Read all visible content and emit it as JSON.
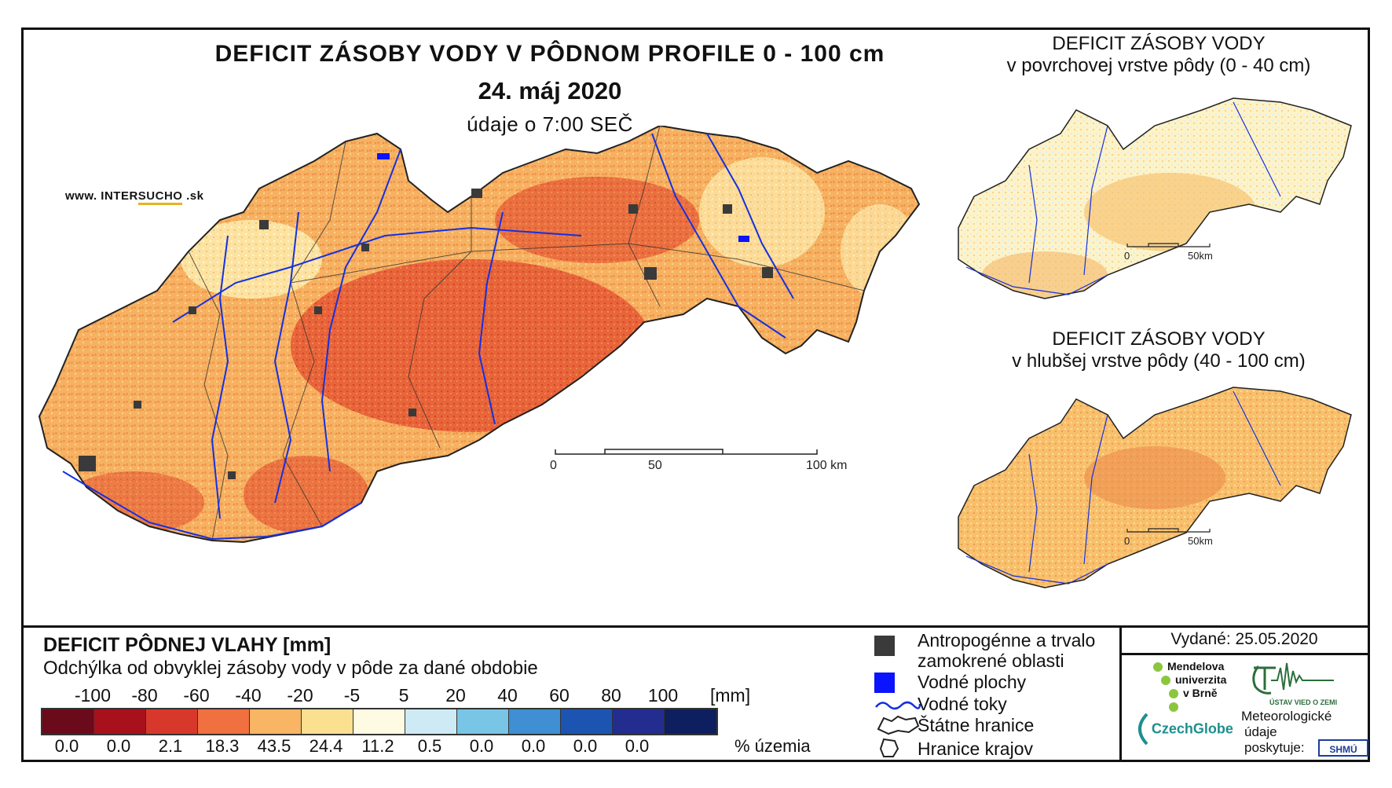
{
  "header": {
    "title": "DEFICIT ZÁSOBY VODY V PÔDNOM PROFILE 0 - 100 cm",
    "date": "24. máj 2020",
    "time_note": "údaje o 7:00 SEČ"
  },
  "source_site": {
    "prefix": "www. INTER",
    "highlight": "SUCHO",
    "suffix": " .sk"
  },
  "inset_top": {
    "title_line1": "DEFICIT ZÁSOBY VODY",
    "title_line2": "v povrchovej vrstve pôdy (0 - 40 cm)",
    "scale": [
      "0",
      "50km"
    ]
  },
  "inset_bottom": {
    "title_line1": "DEFICIT ZÁSOBY VODY",
    "title_line2": "v hlubšej vrstve pôdy (40 - 100 cm)",
    "scale": [
      "0",
      "50km"
    ]
  },
  "main_scale": [
    "0",
    "50",
    "100 km"
  ],
  "legend": {
    "title": "DEFICIT PÔDNEJ VLAHY [mm]",
    "subtitle": "Odchýlka od obvyklej zásoby vody v pôde za dané obdobie",
    "breaks": [
      "-100",
      "-80",
      "-60",
      "-40",
      "-20",
      "-5",
      "5",
      "20",
      "40",
      "60",
      "80",
      "100"
    ],
    "unit": "[mm]",
    "colors": [
      "#6b0a1a",
      "#a8101c",
      "#d7382b",
      "#f0703f",
      "#f8b564",
      "#fbe08f",
      "#fffbe3",
      "#cdeaf5",
      "#78c5e6",
      "#3f8fd2",
      "#1b55b1",
      "#232c8f",
      "#0d1f5e"
    ],
    "percentages": [
      "0.0",
      "0.0",
      "2.1",
      "18.3",
      "43.5",
      "24.4",
      "11.2",
      "0.5",
      "0.0",
      "0.0",
      "0.0",
      "0.0"
    ],
    "percent_label": "% územia"
  },
  "symbols": {
    "urban": "Antropogénne a trvalo zamokrené oblasti",
    "water_bodies": "Vodné plochy",
    "rivers": "Vodné toky",
    "state_border": "Štátne hranice",
    "region_border": "Hranice krajov"
  },
  "issued": "Vydané: 25.05.2020",
  "institutions": {
    "mendel": [
      "Mendelova",
      "univerzita",
      "v Brně"
    ],
    "czechglobe": "CzechGlobe",
    "ustav": "ÚSTAV VIED O ZEMI",
    "meteo": [
      "Meteorologické",
      "údaje",
      "poskytuje:"
    ],
    "shmu": "SHMÚ"
  },
  "colors": {
    "river": "#1530e0",
    "urban": "#3a3a3a",
    "water": "#0a14ff",
    "map_dominant": "#f6b262",
    "map_hot": "#e4582f"
  }
}
